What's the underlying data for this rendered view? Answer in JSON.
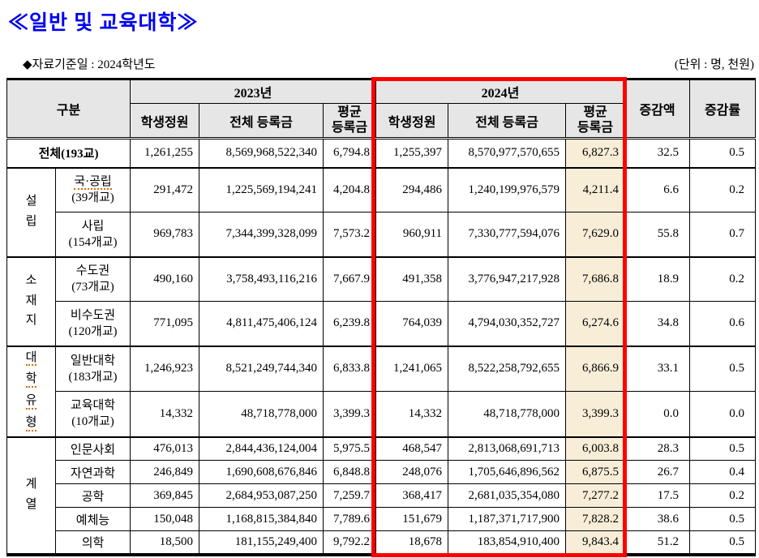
{
  "page": {
    "title": "≪일반 및 교육대학≫",
    "data_date_label": "◆자료기준일 : 2024학년도",
    "unit_label": "(단위 : 명, 천원)"
  },
  "colors": {
    "title_blue": "#0000ee",
    "highlight_red_box": "#ff0000",
    "avg_column_cream": "#f8eed8",
    "header_gray": "#e6e6e6",
    "spellcheck_orange": "#e06a00"
  },
  "table": {
    "header": {
      "gubun": "구분",
      "year2023": "2023년",
      "year2024": "2024년",
      "student_quota": "학생정원",
      "total_tuition": "전체 등록금",
      "avg_tuition": "평균\n등록금",
      "change_amount": "증감액",
      "change_rate": "증감률"
    },
    "total": {
      "label": "전체(193교)",
      "v": [
        "1,261,255",
        "8,569,968,522,340",
        "6,794.8",
        "1,255,397",
        "8,570,977,570,655",
        "6,827.3",
        "32.5",
        "0.5"
      ]
    },
    "groups": [
      {
        "label": "설립",
        "rows": [
          {
            "l1": "국·공립",
            "l2": "(39개교)",
            "v": [
              "291,472",
              "1,225,569,194,241",
              "4,204.8",
              "294,486",
              "1,240,199,976,579",
              "4,211.4",
              "6.6",
              "0.2"
            ]
          },
          {
            "l1": "사립",
            "l2": "(154개교)",
            "v": [
              "969,783",
              "7,344,399,328,099",
              "7,573.2",
              "960,911",
              "7,330,777,594,076",
              "7,629.0",
              "55.8",
              "0.7"
            ]
          }
        ]
      },
      {
        "label": "소재지",
        "rows": [
          {
            "l1": "수도권",
            "l2": "(73개교)",
            "v": [
              "490,160",
              "3,758,493,116,216",
              "7,667.9",
              "491,358",
              "3,776,947,217,928",
              "7,686.8",
              "18.9",
              "0.2"
            ]
          },
          {
            "l1": "비수도권",
            "l2": "(120개교)",
            "v": [
              "771,095",
              "4,811,475,406,124",
              "6,239.8",
              "764,039",
              "4,794,030,352,727",
              "6,274.6",
              "34.8",
              "0.6"
            ]
          }
        ]
      },
      {
        "label": "대학유형",
        "rows": [
          {
            "l1": "일반대학",
            "l2": "(183개교)",
            "v": [
              "1,246,923",
              "8,521,249,744,340",
              "6,833.8",
              "1,241,065",
              "8,522,258,792,655",
              "6,866.9",
              "33.1",
              "0.5"
            ]
          },
          {
            "l1": "교육대학",
            "l2": "(10개교)",
            "v": [
              "14,332",
              "48,718,778,000",
              "3,399.3",
              "14,332",
              "48,718,778,000",
              "3,399.3",
              "0.0",
              "0.0"
            ]
          }
        ]
      },
      {
        "label": "계열",
        "rows": [
          {
            "l1": "인문사회",
            "v": [
              "476,013",
              "2,844,436,124,004",
              "5,975.5",
              "468,547",
              "2,813,068,691,713",
              "6,003.8",
              "28.3",
              "0.5"
            ]
          },
          {
            "l1": "자연과학",
            "v": [
              "246,849",
              "1,690,608,676,846",
              "6,848.8",
              "248,076",
              "1,705,646,896,562",
              "6,875.5",
              "26.7",
              "0.4"
            ]
          },
          {
            "l1": "공학",
            "v": [
              "369,845",
              "2,684,953,087,250",
              "7,259.7",
              "368,417",
              "2,681,035,354,080",
              "7,277.2",
              "17.5",
              "0.2"
            ]
          },
          {
            "l1": "예체능",
            "v": [
              "150,048",
              "1,168,815,384,840",
              "7,789.6",
              "151,679",
              "1,187,371,717,900",
              "7,828.2",
              "38.6",
              "0.5"
            ]
          },
          {
            "l1": "의학",
            "v": [
              "18,500",
              "181,155,249,400",
              "9,792.2",
              "18,678",
              "183,854,910,400",
              "9,843.4",
              "51.2",
              "0.5"
            ]
          }
        ]
      }
    ]
  }
}
